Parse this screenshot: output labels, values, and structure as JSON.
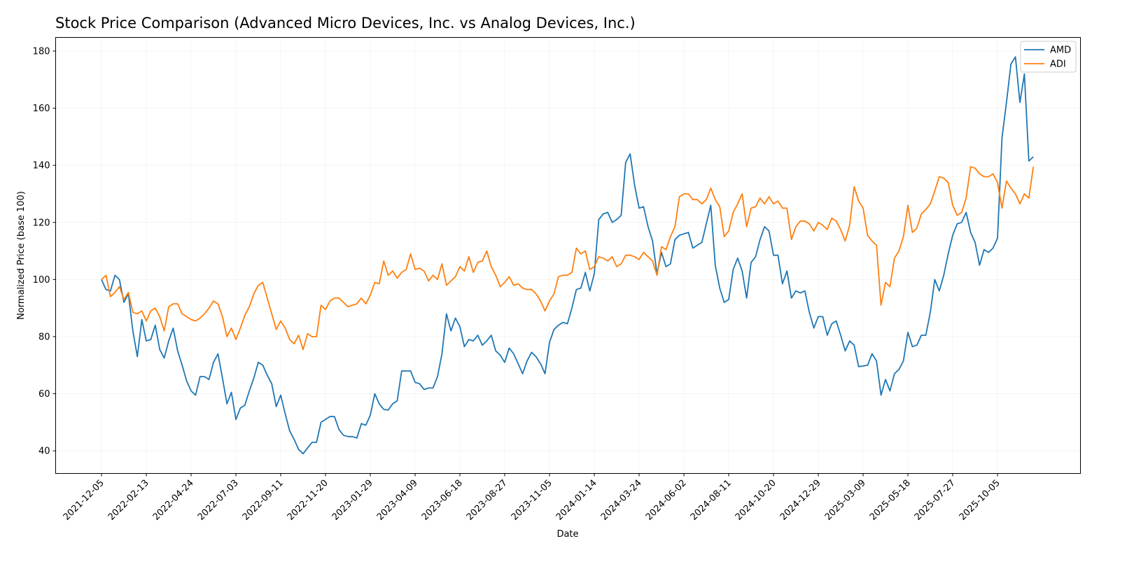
{
  "chart_data": {
    "type": "line",
    "title": "Stock Price Comparison (Advanced Micro Devices, Inc. vs Analog Devices, Inc.)",
    "xlabel": "Date",
    "ylabel": "Normalized Price (base 100)",
    "x_start": "2021-12-05",
    "x_step_days": 7,
    "ylim": [
      32,
      185
    ],
    "yticks": [
      40,
      60,
      80,
      100,
      120,
      140,
      160,
      180
    ],
    "xtick_labels": [
      "2021-12-05",
      "2022-02-13",
      "2022-04-24",
      "2022-07-03",
      "2022-09-11",
      "2022-11-20",
      "2023-01-29",
      "2023-04-09",
      "2023-06-18",
      "2023-08-27",
      "2023-11-05",
      "2024-01-14",
      "2024-03-24",
      "2024-06-02",
      "2024-08-11",
      "2024-10-20",
      "2024-12-29",
      "2025-03-09",
      "2025-05-18",
      "2025-07-27",
      "2025-10-05"
    ],
    "xtick_step_days": 70,
    "grid": true,
    "legend_position": "top-right",
    "series": [
      {
        "name": "AMD",
        "color": "#1f77b4",
        "values": [
          100,
          96.5,
          96,
          101.5,
          100,
          92,
          95,
          82,
          73,
          86,
          78.5,
          79,
          84,
          75.5,
          72.5,
          78.5,
          83,
          75,
          70,
          64.5,
          61,
          59.5,
          66,
          66,
          65,
          71,
          74,
          65.5,
          56.5,
          60.5,
          51,
          55,
          56,
          61,
          65.5,
          71,
          70,
          66.5,
          63.5,
          55.5,
          59.5,
          53,
          47,
          44,
          40.5,
          39,
          41,
          43,
          43,
          50,
          51,
          52,
          52,
          47.5,
          45.5,
          45,
          45,
          44.5,
          49.5,
          49,
          52.5,
          60,
          56.5,
          54.5,
          54.3,
          56.5,
          57.5,
          68,
          68,
          68,
          64,
          63.5,
          61.5,
          62,
          62,
          66,
          74,
          88,
          82,
          86.5,
          83.5,
          76.5,
          79,
          78.5,
          80.5,
          77,
          78.5,
          80.5,
          75,
          73.5,
          71,
          76,
          74,
          70.5,
          67,
          71.5,
          74.5,
          73,
          70.5,
          67,
          78,
          82.5,
          84,
          85,
          84.5,
          90,
          96.5,
          97,
          102.5,
          96,
          102,
          121,
          123,
          123.5,
          120,
          121,
          122.5,
          141,
          144,
          133,
          125,
          125.5,
          118.5,
          113.5,
          102,
          109.5,
          104.5,
          105.5,
          114,
          115.5,
          116,
          116.5,
          111,
          112,
          113,
          119.5,
          126,
          105,
          97,
          92,
          93,
          103.5,
          107.5,
          103,
          93.5,
          106,
          108,
          114,
          118.5,
          117,
          108.5,
          108.5,
          98.5,
          103,
          93.5,
          96,
          95.3,
          96,
          88.5,
          83,
          87,
          87,
          80.5,
          84.5,
          85.5,
          80.5,
          75,
          78.5,
          77,
          69.5,
          69.7,
          70,
          74,
          71.5,
          59.5,
          65,
          61,
          67,
          68.5,
          71.5,
          81.5,
          76.5,
          77,
          80.5,
          80.5,
          88.5,
          100,
          96,
          101.5,
          109,
          115.5,
          119.5,
          120,
          123.5,
          116.5,
          113,
          105,
          110.5,
          109.5,
          111,
          114.5,
          149.5,
          162,
          175.5,
          178,
          162,
          172,
          141.5,
          143
        ]
      },
      {
        "name": "ADI",
        "color": "#ff7f0e",
        "values": [
          100,
          101.5,
          94,
          95.5,
          97.5,
          93,
          95.5,
          88.5,
          88,
          89,
          85.5,
          89,
          90,
          87,
          82,
          90.5,
          91.5,
          91.5,
          88,
          87,
          86,
          85.5,
          86.5,
          88,
          90,
          92.5,
          91.5,
          87,
          80,
          83,
          79,
          83,
          87.5,
          90.5,
          95,
          98,
          99,
          93.5,
          88,
          82.5,
          85.5,
          83,
          79,
          77.5,
          80.5,
          75.5,
          81,
          80,
          80,
          91,
          89.5,
          92.5,
          93.5,
          93.5,
          92,
          90.5,
          91,
          91.5,
          93.5,
          91.5,
          94.5,
          99,
          98.5,
          106.5,
          101.5,
          103,
          100.5,
          102.5,
          103.5,
          109,
          103.5,
          104,
          103,
          99.5,
          101.5,
          100,
          105.5,
          98,
          99.5,
          101,
          104.5,
          103,
          108,
          102.5,
          106,
          106.5,
          110,
          104.5,
          101.5,
          97.5,
          99,
          101,
          98,
          98.5,
          97,
          96.5,
          96.5,
          95,
          92.5,
          89,
          92.5,
          95,
          101,
          101.5,
          101.5,
          102.5,
          111,
          109,
          110,
          103.5,
          104.5,
          108,
          107.5,
          106.5,
          108,
          104.5,
          105.5,
          108.5,
          108.5,
          108,
          107,
          109.5,
          108,
          106.5,
          101.5,
          111.5,
          110.5,
          115,
          118.5,
          129,
          130,
          130,
          128,
          128,
          126.5,
          128,
          132,
          128,
          125.5,
          115,
          117,
          123.5,
          126.5,
          130,
          118.5,
          125,
          125.5,
          128.5,
          126.5,
          129,
          126.5,
          127.5,
          125,
          125,
          114,
          118.5,
          120.5,
          120.5,
          119.5,
          117,
          120,
          119,
          117.5,
          121.5,
          120.5,
          117.5,
          113.5,
          119,
          132.5,
          127.5,
          125,
          115.5,
          113.5,
          112,
          91,
          99,
          97.5,
          107.5,
          110,
          115,
          126,
          116.5,
          118,
          123,
          124.5,
          126.5,
          131,
          136,
          135.5,
          134,
          126,
          122.5,
          123.5,
          128.5,
          139.5,
          139,
          137,
          136,
          136,
          137,
          134,
          125,
          134.5,
          132,
          130,
          126.5,
          130,
          128.5,
          139.5
        ]
      }
    ]
  }
}
